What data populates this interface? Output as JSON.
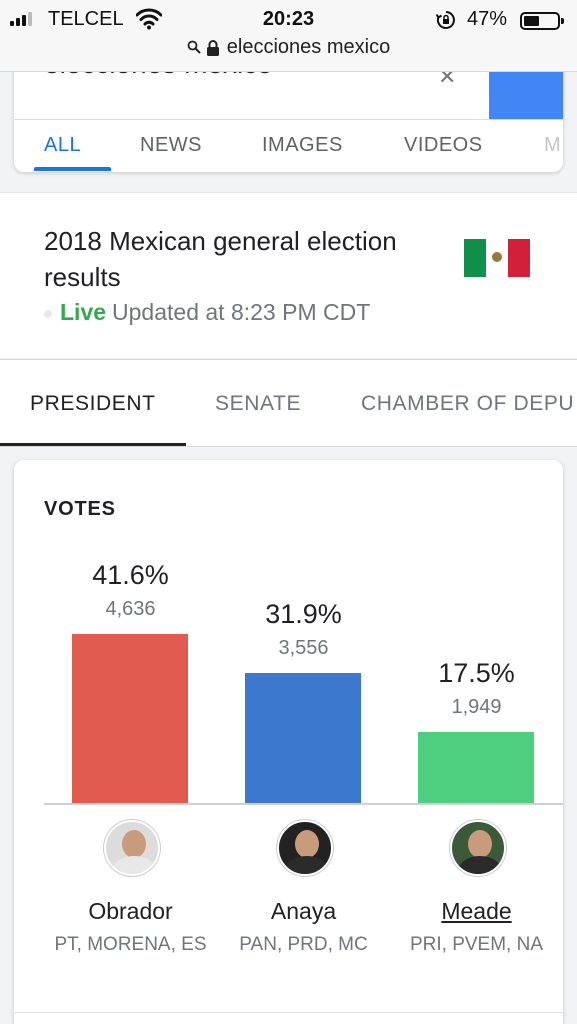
{
  "status_bar": {
    "carrier": "TELCEL",
    "time": "20:23",
    "battery_percent": "47%",
    "battery_level": 0.47,
    "url": "elecciones mexico"
  },
  "search": {
    "query": "elecciones mexico",
    "tabs": [
      "ALL",
      "NEWS",
      "IMAGES",
      "VIDEOS",
      "M"
    ],
    "active_tab": "ALL"
  },
  "result": {
    "title": "2018 Mexican general election results",
    "live_label": "Live",
    "updated": "Updated at 8:23 PM CDT"
  },
  "election_tabs": {
    "items": [
      "PRESIDENT",
      "SENATE",
      "CHAMBER OF DEPU"
    ],
    "active": "PRESIDENT"
  },
  "votes": {
    "title": "VOTES"
  },
  "chart_data": {
    "type": "bar",
    "title": "VOTES",
    "categories": [
      "Obrador",
      "Anaya",
      "Meade"
    ],
    "values": [
      41.6,
      31.9,
      17.5
    ],
    "value_labels": [
      "41.6%",
      "31.9%",
      "17.5%"
    ],
    "vote_counts": [
      "4,636",
      "3,556",
      "1,949"
    ],
    "parties": [
      "PT, MORENA, ES",
      "PAN, PRD, MC",
      "PRI, PVEM, NA"
    ],
    "colors": [
      "#e15b51",
      "#3d78cf",
      "#4ece7f"
    ],
    "ylim": [
      0,
      41.6
    ],
    "grid": false
  }
}
